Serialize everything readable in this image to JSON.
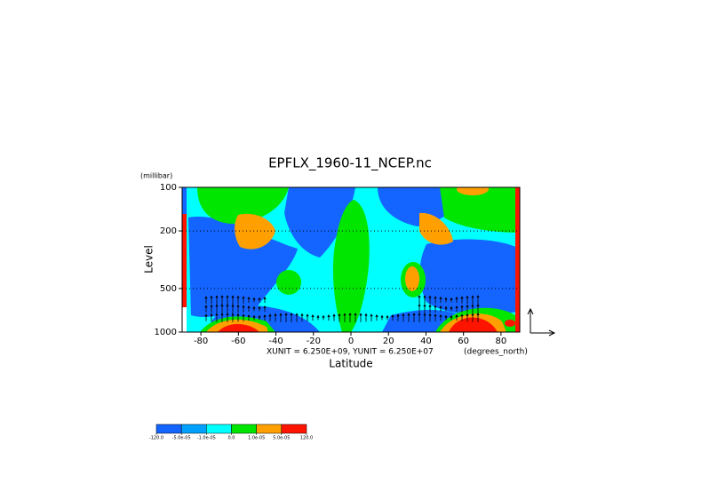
{
  "chart_data": {
    "type": "contour",
    "title": "EPFLX_1960-11_NCEP.nc",
    "x_label": "Latitude",
    "y_label": "Level",
    "y_unit": "(millibar)",
    "x_unit": "(degrees_north)",
    "vector_scale": "XUNIT = 6.250E+09, YUNIT = 6.250E+07",
    "xlim": [
      -90,
      90
    ],
    "xticks": [
      -80,
      -60,
      -40,
      -20,
      0,
      20,
      40,
      60,
      80
    ],
    "ylim": [
      1000,
      100
    ],
    "yticks": [
      100,
      200,
      500,
      1000
    ],
    "log_y": true,
    "grid": true,
    "colorbar": {
      "levels": [
        {
          "value": -120,
          "label": "-120.0"
        },
        {
          "value": -5e-05,
          "label": "-5.0e-05"
        },
        {
          "value": -1e-05,
          "label": "-1.0e-05"
        },
        {
          "value": 0,
          "label": "0.0"
        },
        {
          "value": 1e-05,
          "label": "1.0e-05"
        },
        {
          "value": 5e-05,
          "label": "5.0e-05"
        },
        {
          "value": 120,
          "label": "120.0"
        }
      ],
      "colors": [
        "#1464ff",
        "#00a0ff",
        "#00ffff",
        "#00e600",
        "#ffa000",
        "#ff1400"
      ]
    }
  }
}
